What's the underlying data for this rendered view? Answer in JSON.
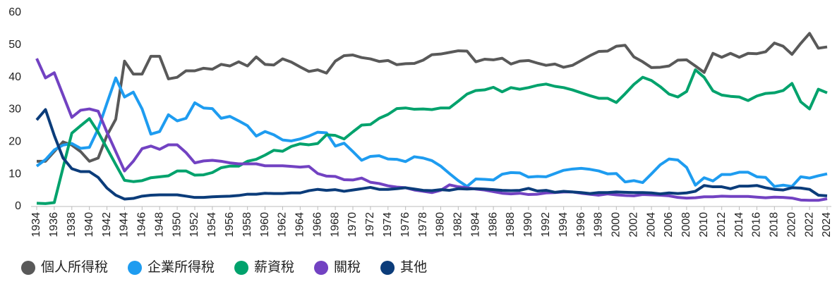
{
  "chart_data": {
    "type": "line",
    "x": [
      1934,
      1935,
      1936,
      1937,
      1938,
      1939,
      1940,
      1941,
      1942,
      1943,
      1944,
      1945,
      1946,
      1947,
      1948,
      1949,
      1950,
      1951,
      1952,
      1953,
      1954,
      1955,
      1956,
      1957,
      1958,
      1959,
      1960,
      1961,
      1962,
      1963,
      1964,
      1965,
      1966,
      1967,
      1968,
      1969,
      1970,
      1971,
      1972,
      1973,
      1974,
      1975,
      1976,
      1977,
      1978,
      1979,
      1980,
      1981,
      1982,
      1983,
      1984,
      1985,
      1986,
      1987,
      1988,
      1989,
      1990,
      1991,
      1992,
      1993,
      1994,
      1995,
      1996,
      1997,
      1998,
      1999,
      2000,
      2001,
      2002,
      2003,
      2004,
      2005,
      2006,
      2007,
      2008,
      2009,
      2010,
      2011,
      2012,
      2013,
      2014,
      2015,
      2016,
      2017,
      2018,
      2019,
      2020,
      2021,
      2022,
      2023,
      2024
    ],
    "xlim": [
      1934,
      2024
    ],
    "xticks": [
      1934,
      1936,
      1938,
      1940,
      1942,
      1944,
      1946,
      1948,
      1950,
      1952,
      1954,
      1956,
      1958,
      1960,
      1962,
      1964,
      1966,
      1968,
      1970,
      1972,
      1974,
      1976,
      1978,
      1980,
      1982,
      1984,
      1986,
      1988,
      1990,
      1992,
      1994,
      1996,
      1998,
      2000,
      2002,
      2004,
      2006,
      2008,
      2010,
      2012,
      2014,
      2016,
      2018,
      2020,
      2022,
      2024
    ],
    "ylim": [
      0,
      60
    ],
    "yticks": [
      0,
      10,
      20,
      30,
      40,
      50,
      60
    ],
    "legend": "bottom",
    "series": [
      {
        "name": "個人所得稅",
        "color": "#595959",
        "values": [
          14,
          14,
          17,
          20,
          19,
          17,
          14,
          15,
          22,
          27,
          45,
          41,
          41,
          46.5,
          46.5,
          39.5,
          40,
          42,
          42,
          42.8,
          42.5,
          44,
          43.5,
          44.8,
          43.5,
          46.3,
          44,
          43.8,
          45.7,
          44.7,
          43.2,
          41.8,
          42.3,
          41.3,
          45,
          46.7,
          46.9,
          46.1,
          45.7,
          44.9,
          45.2,
          43.9,
          44.2,
          44.3,
          45.3,
          47,
          47.2,
          47.7,
          48.2,
          48.1,
          44.8,
          45.6,
          45.4,
          45.9,
          44.1,
          45,
          45.2,
          44.4,
          43.7,
          44.1,
          43.1,
          43.7,
          45.2,
          46.7,
          48,
          48.1,
          49.6,
          49.9,
          46.3,
          44.8,
          43,
          43.1,
          43.5,
          45.3,
          45.4,
          43.5,
          41.5,
          47.4,
          46.2,
          47.4,
          46.2,
          47.4,
          47.3,
          47.9,
          50.6,
          49.6,
          47.1,
          50.5,
          53.6,
          49,
          49.4
        ]
      },
      {
        "name": "企業所得稅",
        "color": "#1e9cf0",
        "values": [
          12.5,
          14.5,
          17.5,
          19,
          19.5,
          18,
          18.3,
          24,
          32,
          39.8,
          33.9,
          35.4,
          30.2,
          22.4,
          23.2,
          28.4,
          26.5,
          27.3,
          32.1,
          30.5,
          30.3,
          27.3,
          27.9,
          26.5,
          25,
          21.8,
          23.2,
          22.2,
          20.6,
          20.3,
          20.9,
          21.8,
          23,
          22.8,
          18.7,
          19.6,
          17,
          14.3,
          15.5,
          15.7,
          14.7,
          14.6,
          13.9,
          15.4,
          15,
          14.2,
          12.5,
          10.2,
          8,
          6.2,
          8.5,
          8.4,
          8.2,
          10,
          10.5,
          10.4,
          9.1,
          9.3,
          9.2,
          10.2,
          11.2,
          11.6,
          11.8,
          11.5,
          11,
          10.1,
          10.2,
          7.6,
          8,
          7.4,
          10.1,
          12.9,
          14.7,
          14.4,
          12.1,
          6.6,
          8.9,
          7.9,
          9.9,
          9.9,
          10.6,
          10.6,
          9.2,
          9,
          6.2,
          6.6,
          6.2,
          9.2,
          8.8,
          9.5,
          10.1
        ]
      },
      {
        "name": "薪資稅",
        "color": "#00a26c",
        "values": [
          1,
          0.9,
          1.2,
          12,
          22.7,
          25,
          27.2,
          23,
          18,
          13,
          8.1,
          7.7,
          8,
          8.9,
          9.2,
          9.5,
          11,
          11,
          9.7,
          9.8,
          10.5,
          12,
          12.5,
          12.5,
          14,
          14.6,
          15.9,
          17.4,
          17.1,
          18.6,
          19.4,
          19.1,
          19.5,
          22.2,
          22,
          20.9,
          23.1,
          25.2,
          25.4,
          27.3,
          28.5,
          30.3,
          30.5,
          30.1,
          30.2,
          30,
          30.5,
          30.5,
          32.6,
          34.8,
          35.9,
          36.1,
          36.9,
          35.5,
          36.8,
          36.3,
          36.8,
          37.5,
          37.9,
          37.2,
          36.8,
          36.1,
          35.2,
          34.3,
          33.5,
          33.5,
          32.2,
          34.9,
          37.8,
          40,
          39,
          37.1,
          34.8,
          33.9,
          35.6,
          42.3,
          40,
          35.8,
          34.5,
          34.1,
          33.9,
          32.8,
          34.2,
          35,
          35.2,
          35.9,
          38.1,
          32.4,
          30.2,
          36.3,
          35.2
        ]
      },
      {
        "name": "關稅",
        "color": "#7242c2",
        "values": [
          45.8,
          39.8,
          41.4,
          34.5,
          27.6,
          29.8,
          30.2,
          29.5,
          23,
          17,
          11,
          14,
          17.9,
          18.7,
          17.7,
          19.1,
          19.1,
          16.7,
          13.5,
          14.1,
          14.3,
          14,
          13.5,
          13.2,
          13.2,
          13.2,
          12.6,
          12.6,
          12.6,
          12.4,
          12.2,
          12.4,
          10.2,
          9.4,
          9.3,
          8.3,
          8.2,
          8.8,
          7.5,
          7.1,
          6.4,
          6,
          5.8,
          5.1,
          4.7,
          4.3,
          5,
          6.7,
          6.1,
          5.8,
          5.4,
          5.1,
          4.6,
          4.1,
          3.9,
          4.1,
          3.7,
          3.8,
          4.2,
          4.3,
          4.5,
          4.5,
          4.1,
          3.8,
          3.5,
          3.9,
          3.6,
          3.4,
          3.3,
          3.7,
          3.6,
          3.5,
          3.3,
          2.8,
          2.6,
          2.7,
          3,
          3,
          3.2,
          3.1,
          3.1,
          3.1,
          2.9,
          2.7,
          2.9,
          2.8,
          2.6,
          2,
          1.9,
          1.9,
          2.4
        ]
      },
      {
        "name": "其他",
        "color": "#0b3c7a",
        "values": [
          26.8,
          30,
          22,
          15,
          11.7,
          10.8,
          10.8,
          9,
          5.7,
          3.5,
          2.3,
          2.5,
          3.2,
          3.5,
          3.6,
          3.6,
          3.6,
          3.2,
          2.8,
          2.8,
          3,
          3.1,
          3.2,
          3.4,
          3.8,
          3.8,
          4.1,
          4,
          4,
          4.2,
          4.2,
          4.9,
          5.3,
          5,
          5.2,
          4.7,
          5.1,
          5.5,
          5.9,
          5.3,
          5.3,
          5.5,
          5.8,
          5.4,
          5,
          4.9,
          5.2,
          5,
          5.5,
          5.4,
          5.5,
          5.4,
          5.2,
          5,
          4.9,
          5,
          5.6,
          4.8,
          5,
          4.4,
          4.7,
          4.5,
          4.3,
          4,
          4.3,
          4.3,
          4.5,
          4.4,
          4.3,
          4.3,
          4.2,
          3.9,
          4.2,
          4,
          4.2,
          4.7,
          6.5,
          6.1,
          6.1,
          5.5,
          6.3,
          6.3,
          6.5,
          5.8,
          5.3,
          5.1,
          5.8,
          5.7,
          5.3,
          3.5,
          3.3
        ]
      }
    ]
  }
}
